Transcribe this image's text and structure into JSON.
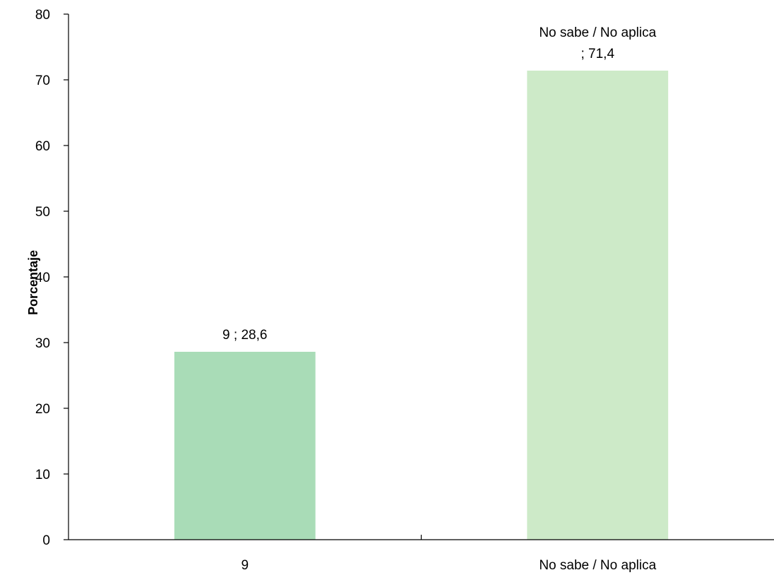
{
  "chart_data": {
    "type": "bar",
    "categories": [
      "9",
      "No sabe / No aplica"
    ],
    "values": [
      28.6,
      71.4
    ],
    "data_labels": [
      [
        "9 ; 28,6"
      ],
      [
        "No sabe / No aplica",
        "; 71,4"
      ]
    ],
    "bar_colors": [
      "#a9dcb7",
      "#cdeac8"
    ],
    "title": "",
    "xlabel": "",
    "ylabel": "Porcentaje",
    "ylim": [
      0,
      80
    ],
    "yticks": [
      0,
      10,
      20,
      30,
      40,
      50,
      60,
      70,
      80
    ],
    "grid": false,
    "legend": "none"
  }
}
